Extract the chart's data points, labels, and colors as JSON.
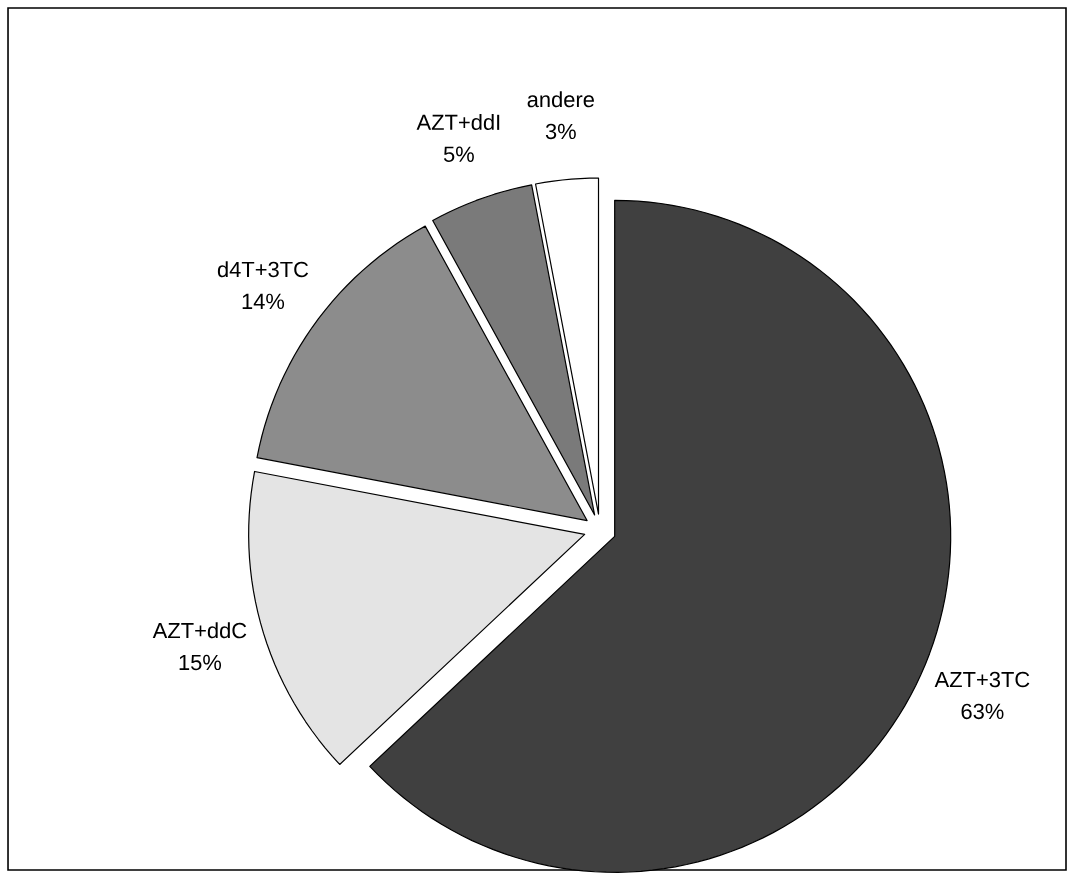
{
  "chart_data": {
    "type": "pie",
    "categories": [
      "AZT+3TC",
      "AZT+ddC",
      "d4T+3TC",
      "AZT+ddI",
      "andere"
    ],
    "values": [
      63,
      15,
      14,
      5,
      3
    ],
    "value_labels": [
      "63%",
      "15%",
      "14%",
      "5%",
      "3%"
    ],
    "colors": [
      "#404040",
      "#e4e4e4",
      "#8c8c8c",
      "#7a7a7a",
      "#ffffff"
    ]
  }
}
